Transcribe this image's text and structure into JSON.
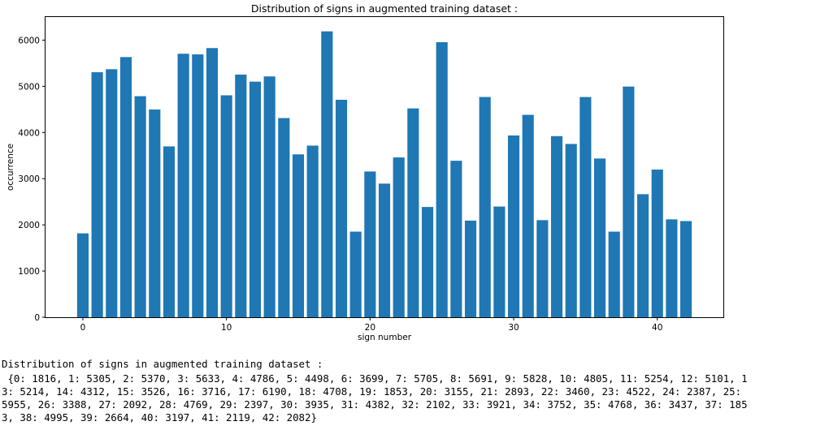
{
  "chart_data": {
    "type": "bar",
    "title": "Distribution of signs in augmented training dataset :",
    "xlabel": "sign number",
    "ylabel": "occurrence",
    "categories": [
      0,
      1,
      2,
      3,
      4,
      5,
      6,
      7,
      8,
      9,
      10,
      11,
      12,
      13,
      14,
      15,
      16,
      17,
      18,
      19,
      20,
      21,
      22,
      23,
      24,
      25,
      26,
      27,
      28,
      29,
      30,
      31,
      32,
      33,
      34,
      35,
      36,
      37,
      38,
      39,
      40,
      41,
      42
    ],
    "values": [
      1816,
      5305,
      5370,
      5633,
      4786,
      4498,
      3699,
      5705,
      5691,
      5828,
      4805,
      5254,
      5101,
      5214,
      4312,
      3526,
      3716,
      6190,
      4708,
      1853,
      3155,
      2893,
      3460,
      4522,
      2387,
      5955,
      3388,
      2092,
      4769,
      2397,
      3935,
      4382,
      2102,
      3921,
      3752,
      4768,
      3437,
      1853,
      4995,
      2664,
      3197,
      2119,
      2082
    ],
    "xlim": [
      -2.6,
      44.6
    ],
    "ylim": [
      0,
      6500
    ],
    "xticks": [
      0,
      10,
      20,
      30,
      40
    ],
    "yticks": [
      0,
      1000,
      2000,
      3000,
      4000,
      5000,
      6000
    ],
    "bar_color": "#1f77b4",
    "grid": false
  },
  "output": {
    "title_line": "Distribution of signs in augmented training dataset :",
    "dict_lines": [
      " {0: 1816, 1: 5305, 2: 5370, 3: 5633, 4: 4786, 5: 4498, 6: 3699, 7: 5705, 8: 5691, 9: 5828, 10: 4805, 11: 5254, 12: 5101, 1",
      "3: 5214, 14: 4312, 15: 3526, 16: 3716, 17: 6190, 18: 4708, 19: 1853, 20: 3155, 21: 2893, 22: 3460, 23: 4522, 24: 2387, 25:",
      "5955, 26: 3388, 27: 2092, 28: 4769, 29: 2397, 30: 3935, 31: 4382, 32: 2102, 33: 3921, 34: 3752, 35: 4768, 36: 3437, 37: 185",
      "3, 38: 4995, 39: 2664, 40: 3197, 41: 2119, 42: 2082}"
    ]
  }
}
